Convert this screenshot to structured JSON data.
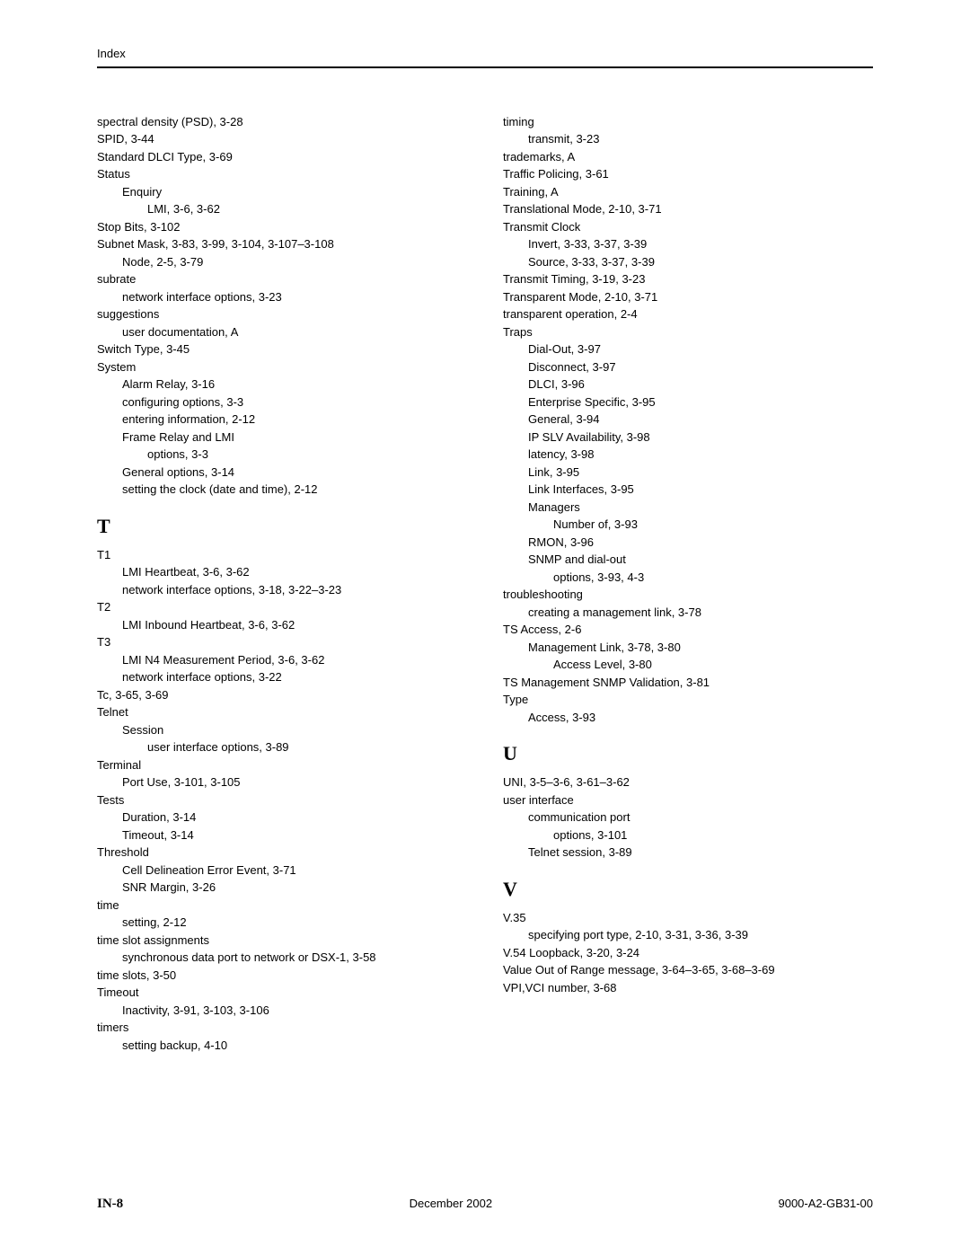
{
  "header": {
    "title": "Index"
  },
  "footer": {
    "left": "IN-8",
    "center": "December 2002",
    "right": "9000-A2-GB31-00"
  },
  "columns": [
    {
      "items": [
        {
          "type": "entry",
          "level": 0,
          "term": "spectral density (PSD),",
          "refs": "3-28"
        },
        {
          "type": "entry",
          "level": 0,
          "term": "SPID,",
          "refs": "3-44"
        },
        {
          "type": "entry",
          "level": 0,
          "term": "Standard DLCI Type,",
          "refs": "3-69"
        },
        {
          "type": "entry",
          "level": 0,
          "term": "Status",
          "refs": ""
        },
        {
          "type": "entry",
          "level": 1,
          "term": "Enquiry",
          "refs": ""
        },
        {
          "type": "entry",
          "level": 2,
          "term": "LMI,",
          "refs": "3-6, 3-62"
        },
        {
          "type": "entry",
          "level": 0,
          "term": "Stop Bits,",
          "refs": "3-102"
        },
        {
          "type": "entry",
          "level": 0,
          "term": "Subnet Mask,",
          "refs": "3-83, 3-99, 3-104, 3-107–3-108"
        },
        {
          "type": "entry",
          "level": 1,
          "term": "Node,",
          "refs": "2-5, 3-79"
        },
        {
          "type": "entry",
          "level": 0,
          "term": "subrate",
          "refs": ""
        },
        {
          "type": "entry",
          "level": 1,
          "term": "network interface options,",
          "refs": "3-23"
        },
        {
          "type": "entry",
          "level": 0,
          "term": "suggestions",
          "refs": ""
        },
        {
          "type": "entry",
          "level": 1,
          "term": "user documentation,",
          "refs": "A"
        },
        {
          "type": "entry",
          "level": 0,
          "term": "Switch Type,",
          "refs": "3-45"
        },
        {
          "type": "entry",
          "level": 0,
          "term": "System",
          "refs": ""
        },
        {
          "type": "entry",
          "level": 1,
          "term": "Alarm Relay,",
          "refs": "3-16"
        },
        {
          "type": "entry",
          "level": 1,
          "term": "configuring options,",
          "refs": "3-3"
        },
        {
          "type": "entry",
          "level": 1,
          "term": "entering information,",
          "refs": "2-12"
        },
        {
          "type": "entry",
          "level": 1,
          "term": "Frame Relay and LMI",
          "refs": ""
        },
        {
          "type": "entry",
          "level": 2,
          "term": "options,",
          "refs": "3-3"
        },
        {
          "type": "entry",
          "level": 1,
          "term": "General options,",
          "refs": "3-14"
        },
        {
          "type": "entry",
          "level": 1,
          "term": "setting the clock (date and time),",
          "refs": "2-12"
        },
        {
          "type": "letter",
          "text": "T"
        },
        {
          "type": "entry",
          "level": 0,
          "term": "T1",
          "refs": ""
        },
        {
          "type": "entry",
          "level": 1,
          "term": "LMI Heartbeat,",
          "refs": "3-6, 3-62"
        },
        {
          "type": "entry",
          "level": 1,
          "term": "network interface options,",
          "refs": "3-18, 3-22–3-23"
        },
        {
          "type": "entry",
          "level": 0,
          "term": "T2",
          "refs": ""
        },
        {
          "type": "entry",
          "level": 1,
          "term": "LMI Inbound Heartbeat,",
          "refs": "3-6, 3-62"
        },
        {
          "type": "entry",
          "level": 0,
          "term": "T3",
          "refs": ""
        },
        {
          "type": "entry",
          "level": 1,
          "term": "LMI N4 Measurement Period,",
          "refs": "3-6, 3-62"
        },
        {
          "type": "entry",
          "level": 1,
          "term": "network interface options,",
          "refs": "3-22"
        },
        {
          "type": "entry",
          "level": 0,
          "term": "Tc,",
          "refs": "3-65, 3-69"
        },
        {
          "type": "entry",
          "level": 0,
          "term": "Telnet",
          "refs": ""
        },
        {
          "type": "entry",
          "level": 1,
          "term": "Session",
          "refs": ""
        },
        {
          "type": "entry",
          "level": 2,
          "term": "user interface options,",
          "refs": "3-89"
        },
        {
          "type": "entry",
          "level": 0,
          "term": "Terminal",
          "refs": ""
        },
        {
          "type": "entry",
          "level": 1,
          "term": "Port Use,",
          "refs": "3-101, 3-105"
        },
        {
          "type": "entry",
          "level": 0,
          "term": "Tests",
          "refs": ""
        },
        {
          "type": "entry",
          "level": 1,
          "term": "Duration,",
          "refs": "3-14"
        },
        {
          "type": "entry",
          "level": 1,
          "term": "Timeout,",
          "refs": "3-14"
        },
        {
          "type": "entry",
          "level": 0,
          "term": "Threshold",
          "refs": ""
        },
        {
          "type": "entry",
          "level": 1,
          "term": "Cell Delineation Error Event,",
          "refs": "3-71"
        },
        {
          "type": "entry",
          "level": 1,
          "term": "SNR Margin,",
          "refs": "3-26"
        },
        {
          "type": "entry",
          "level": 0,
          "term": "time",
          "refs": ""
        },
        {
          "type": "entry",
          "level": 1,
          "term": "setting,",
          "refs": "2-12"
        },
        {
          "type": "entry",
          "level": 0,
          "term": "time slot assignments",
          "refs": ""
        },
        {
          "type": "entry",
          "level": 1,
          "term": "synchronous data port to network or DSX-1,",
          "refs": "3-58"
        },
        {
          "type": "entry",
          "level": 0,
          "term": "time slots,",
          "refs": "3-50"
        },
        {
          "type": "entry",
          "level": 0,
          "term": "Timeout",
          "refs": ""
        },
        {
          "type": "entry",
          "level": 1,
          "term": "Inactivity,",
          "refs": "3-91, 3-103, 3-106"
        },
        {
          "type": "entry",
          "level": 0,
          "term": "timers",
          "refs": ""
        },
        {
          "type": "entry",
          "level": 1,
          "term": "setting backup,",
          "refs": "4-10"
        }
      ]
    },
    {
      "items": [
        {
          "type": "entry",
          "level": 0,
          "term": "timing",
          "refs": ""
        },
        {
          "type": "entry",
          "level": 1,
          "term": "transmit,",
          "refs": "3-23"
        },
        {
          "type": "entry",
          "level": 0,
          "term": "trademarks,",
          "refs": "A"
        },
        {
          "type": "entry",
          "level": 0,
          "term": "Traffic Policing,",
          "refs": "3-61"
        },
        {
          "type": "entry",
          "level": 0,
          "term": "Training,",
          "refs": "A"
        },
        {
          "type": "entry",
          "level": 0,
          "term": "Translational Mode,",
          "refs": "2-10, 3-71"
        },
        {
          "type": "entry",
          "level": 0,
          "term": "Transmit Clock",
          "refs": ""
        },
        {
          "type": "entry",
          "level": 1,
          "term": "Invert,",
          "refs": "3-33, 3-37, 3-39"
        },
        {
          "type": "entry",
          "level": 1,
          "term": "Source,",
          "refs": "3-33, 3-37, 3-39"
        },
        {
          "type": "entry",
          "level": 0,
          "term": "Transmit Timing,",
          "refs": "3-19, 3-23"
        },
        {
          "type": "entry",
          "level": 0,
          "term": "Transparent Mode,",
          "refs": "2-10, 3-71"
        },
        {
          "type": "entry",
          "level": 0,
          "term": "transparent operation,",
          "refs": "2-4"
        },
        {
          "type": "entry",
          "level": 0,
          "term": "Traps",
          "refs": ""
        },
        {
          "type": "entry",
          "level": 1,
          "term": "Dial-Out,",
          "refs": "3-97"
        },
        {
          "type": "entry",
          "level": 1,
          "term": "Disconnect,",
          "refs": "3-97"
        },
        {
          "type": "entry",
          "level": 1,
          "term": "DLCI,",
          "refs": "3-96"
        },
        {
          "type": "entry",
          "level": 1,
          "term": "Enterprise Specific,",
          "refs": "3-95"
        },
        {
          "type": "entry",
          "level": 1,
          "term": "General,",
          "refs": "3-94"
        },
        {
          "type": "entry",
          "level": 1,
          "term": "IP SLV Availability,",
          "refs": "3-98"
        },
        {
          "type": "entry",
          "level": 1,
          "term": "latency,",
          "refs": "3-98"
        },
        {
          "type": "entry",
          "level": 1,
          "term": "Link,",
          "refs": "3-95"
        },
        {
          "type": "entry",
          "level": 1,
          "term": "Link Interfaces,",
          "refs": "3-95"
        },
        {
          "type": "entry",
          "level": 1,
          "term": "Managers",
          "refs": ""
        },
        {
          "type": "entry",
          "level": 2,
          "term": "Number of,",
          "refs": "3-93"
        },
        {
          "type": "entry",
          "level": 1,
          "term": "RMON,",
          "refs": "3-96"
        },
        {
          "type": "entry",
          "level": 1,
          "term": "SNMP and dial-out",
          "refs": ""
        },
        {
          "type": "entry",
          "level": 2,
          "term": "options,",
          "refs": "3-93, 4-3"
        },
        {
          "type": "entry",
          "level": 0,
          "term": "troubleshooting",
          "refs": ""
        },
        {
          "type": "entry",
          "level": 1,
          "term": "creating a management link,",
          "refs": "3-78"
        },
        {
          "type": "entry",
          "level": 0,
          "term": "TS Access,",
          "refs": "2-6"
        },
        {
          "type": "entry",
          "level": 1,
          "term": "Management Link,",
          "refs": "3-78, 3-80"
        },
        {
          "type": "entry",
          "level": 2,
          "term": "Access Level,",
          "refs": "3-80"
        },
        {
          "type": "entry",
          "level": 0,
          "term": "TS Management SNMP Validation,",
          "refs": "3-81"
        },
        {
          "type": "entry",
          "level": 0,
          "term": "Type",
          "refs": ""
        },
        {
          "type": "entry",
          "level": 1,
          "term": "Access,",
          "refs": "3-93"
        },
        {
          "type": "letter",
          "text": "U"
        },
        {
          "type": "entry",
          "level": 0,
          "term": "UNI,",
          "refs": "3-5–3-6, 3-61–3-62"
        },
        {
          "type": "entry",
          "level": 0,
          "term": "user interface",
          "refs": ""
        },
        {
          "type": "entry",
          "level": 1,
          "term": "communication port",
          "refs": ""
        },
        {
          "type": "entry",
          "level": 2,
          "term": "options,",
          "refs": "3-101"
        },
        {
          "type": "entry",
          "level": 1,
          "term": "Telnet session,",
          "refs": "3-89"
        },
        {
          "type": "letter",
          "text": "V"
        },
        {
          "type": "entry",
          "level": 0,
          "term": "V.35",
          "refs": ""
        },
        {
          "type": "entry",
          "level": 1,
          "term": "specifying port type,",
          "refs": "2-10, 3-31, 3-36, 3-39"
        },
        {
          "type": "entry",
          "level": 0,
          "term": "V.54 Loopback,",
          "refs": "3-20, 3-24"
        },
        {
          "type": "entry",
          "level": 0,
          "term": "Value Out of Range message,",
          "refs": "3-64–3-65, 3-68–3-69"
        },
        {
          "type": "entry",
          "level": 0,
          "term": "VPI,VCI number,",
          "refs": "3-68"
        }
      ]
    }
  ]
}
